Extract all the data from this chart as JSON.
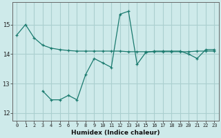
{
  "xlabel": "Humidex (Indice chaleur)",
  "background_color": "#ceeaea",
  "grid_color": "#aacfcf",
  "line_color": "#1a7a6e",
  "xlim": [
    -0.5,
    23.5
  ],
  "ylim": [
    11.75,
    15.75
  ],
  "xticks": [
    0,
    1,
    2,
    3,
    4,
    5,
    6,
    7,
    8,
    9,
    10,
    11,
    12,
    13,
    14,
    15,
    16,
    17,
    18,
    19,
    20,
    21,
    22,
    23
  ],
  "yticks": [
    12,
    13,
    14,
    15
  ],
  "line1_x": [
    0,
    1,
    2,
    3,
    4,
    5,
    6,
    7,
    8,
    9,
    10,
    11,
    12,
    13,
    14,
    15,
    16,
    17,
    18,
    19,
    20,
    21,
    22,
    23
  ],
  "line1_y": [
    14.65,
    15.0,
    14.55,
    14.3,
    14.2,
    14.15,
    14.12,
    14.1,
    14.1,
    14.1,
    14.1,
    14.1,
    14.1,
    14.08,
    14.08,
    14.08,
    14.08,
    14.08,
    14.08,
    14.08,
    14.08,
    14.1,
    14.1,
    14.1
  ],
  "line2_x": [
    3,
    4,
    5,
    6,
    7,
    8,
    9,
    10,
    11,
    12,
    13,
    14,
    15,
    16,
    17,
    18,
    19,
    20,
    21,
    22,
    23
  ],
  "line2_y": [
    12.75,
    12.45,
    12.45,
    12.6,
    12.45,
    13.3,
    13.85,
    13.7,
    13.55,
    15.35,
    15.45,
    13.65,
    14.05,
    14.1,
    14.1,
    14.1,
    14.1,
    14.0,
    13.85,
    14.15,
    14.15
  ]
}
